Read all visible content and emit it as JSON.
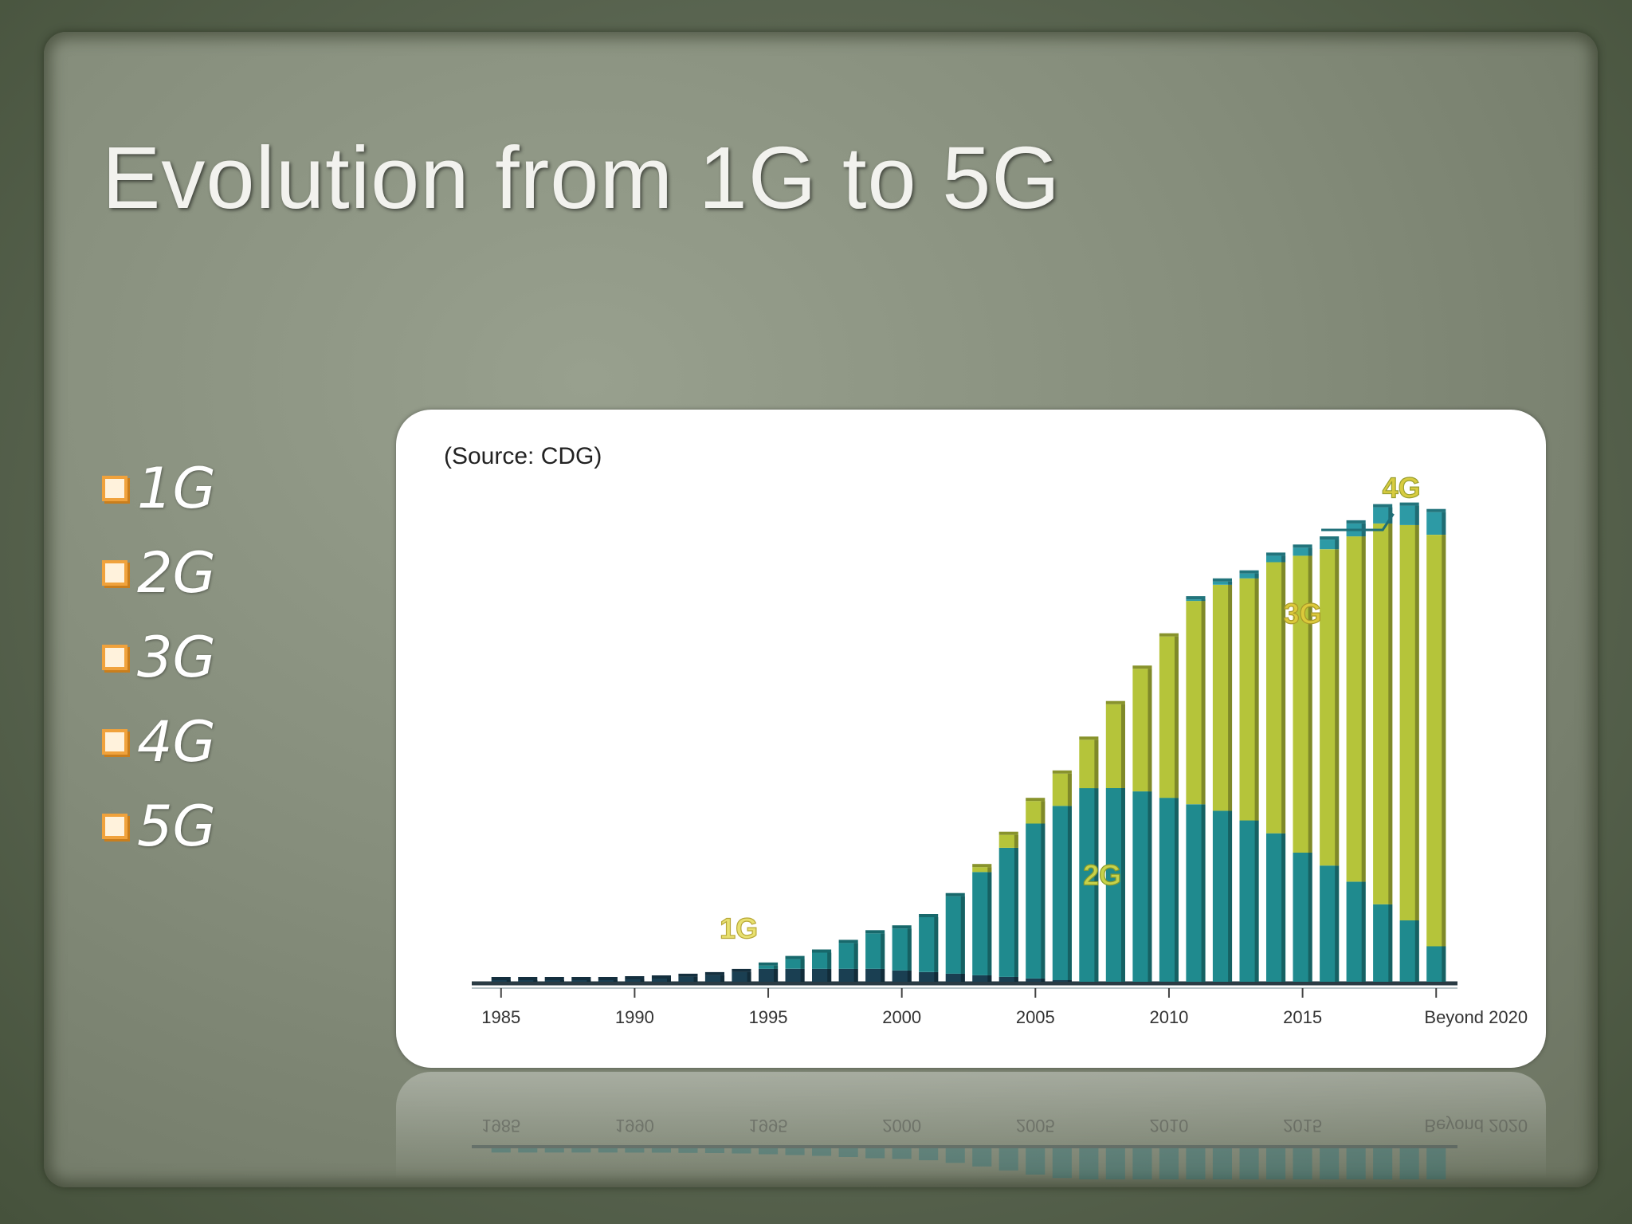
{
  "slide": {
    "title": "Evolution from 1G to 5G",
    "bullets": [
      "1G",
      "2G",
      "3G",
      "4G",
      "5G"
    ],
    "bullet_color": "#f0a23c"
  },
  "chart_data": {
    "type": "bar",
    "stacked": true,
    "title": "",
    "source_note": "(Source: CDG)",
    "xlabel": "",
    "ylabel": "",
    "categories": [
      "1985",
      "1986",
      "1987",
      "1988",
      "1989",
      "1990",
      "1991",
      "1992",
      "1993",
      "1994",
      "1995",
      "1996",
      "1997",
      "1998",
      "1999",
      "2000",
      "2001",
      "2002",
      "2003",
      "2004",
      "2005",
      "2006",
      "2007",
      "2008",
      "2009",
      "2010",
      "2011",
      "2012",
      "2013",
      "2014",
      "2015",
      "2016",
      "2017",
      "2018",
      "2019",
      "2020"
    ],
    "x_tick_labels": [
      "1985",
      "1990",
      "1995",
      "2000",
      "2005",
      "2010",
      "2015",
      "Beyond 2020"
    ],
    "series": [
      {
        "name": "1G",
        "color": "#1a3f52",
        "values": [
          1,
          1,
          1,
          1,
          1,
          1.5,
          2,
          3,
          4,
          6,
          8,
          8,
          8,
          8,
          8,
          7,
          6,
          5,
          4,
          3,
          2,
          1,
          0,
          0,
          0,
          0,
          0,
          0,
          0,
          0,
          0,
          0,
          0,
          0,
          0,
          0
        ]
      },
      {
        "name": "2G",
        "color": "#1f8a8e",
        "values": [
          0,
          0,
          0,
          0,
          0,
          0,
          0,
          0,
          0,
          0,
          2,
          6,
          10,
          16,
          22,
          26,
          34,
          48,
          64,
          80,
          96,
          108,
          120,
          120,
          118,
          114,
          110,
          106,
          100,
          92,
          80,
          72,
          62,
          48,
          38,
          22
        ]
      },
      {
        "name": "3G",
        "color": "#b5c43a",
        "values": [
          0,
          0,
          0,
          0,
          0,
          0,
          0,
          0,
          0,
          0,
          0,
          0,
          0,
          0,
          0,
          0,
          0,
          0,
          3,
          8,
          14,
          20,
          30,
          52,
          76,
          100,
          126,
          140,
          150,
          168,
          184,
          196,
          214,
          236,
          245,
          255
        ]
      },
      {
        "name": "4G",
        "color": "#2d9aa5",
        "values": [
          0,
          0,
          0,
          0,
          0,
          0,
          0,
          0,
          0,
          0,
          0,
          0,
          0,
          0,
          0,
          0,
          0,
          0,
          0,
          0,
          0,
          0,
          0,
          0,
          0,
          0,
          1,
          2,
          3,
          4,
          5,
          6,
          8,
          10,
          12,
          14
        ]
      }
    ],
    "in_chart_labels": [
      {
        "text": "1G",
        "series": "1G"
      },
      {
        "text": "2G",
        "series": "2G"
      },
      {
        "text": "3G",
        "series": "3G"
      },
      {
        "text": "4G",
        "series": "4G"
      }
    ],
    "ylim": [
      0,
      320
    ],
    "grid": false,
    "legend": "none"
  }
}
